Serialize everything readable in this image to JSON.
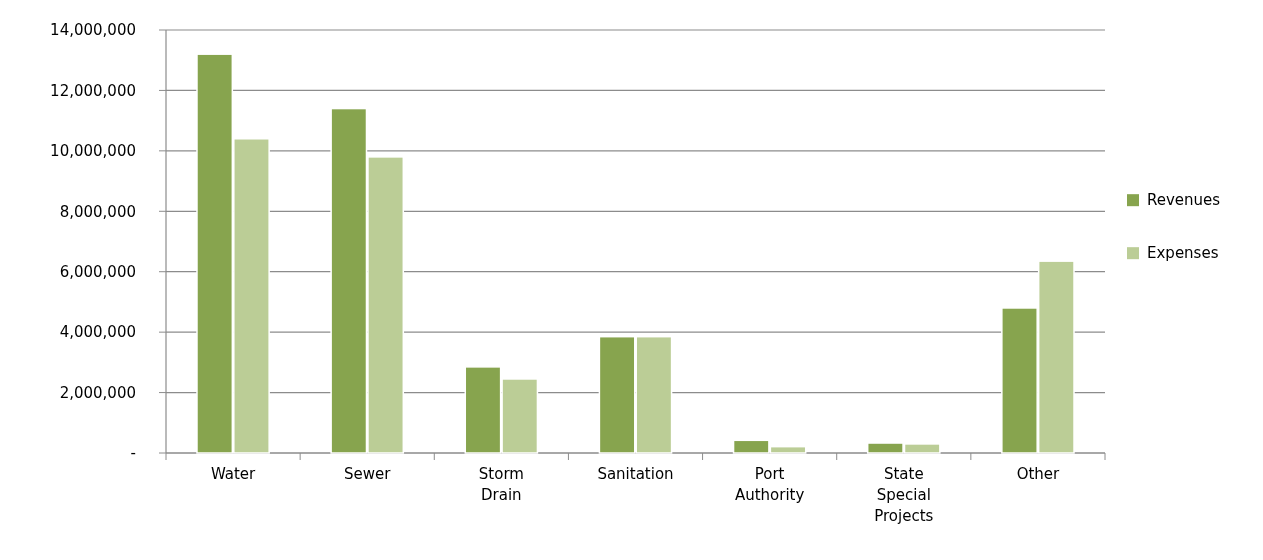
{
  "chart_data": {
    "type": "bar",
    "categories": [
      "Water",
      "Sewer",
      "Storm Drain",
      "Sanitation",
      "Port Authority",
      "State Special Projects",
      "Other"
    ],
    "series": [
      {
        "name": "Revenues",
        "color": "#87a44e",
        "values": [
          13200000,
          11400000,
          2850000,
          3850000,
          420000,
          330000,
          4800000
        ]
      },
      {
        "name": "Expenses",
        "color": "#bbcd96",
        "values": [
          10400000,
          9800000,
          2450000,
          3850000,
          210000,
          300000,
          6350000
        ]
      }
    ],
    "ylim": [
      0,
      14000000
    ],
    "yticks": [
      {
        "value": 0,
        "label": "-"
      },
      {
        "value": 2000000,
        "label": "2,000,000"
      },
      {
        "value": 4000000,
        "label": "4,000,000"
      },
      {
        "value": 6000000,
        "label": "6,000,000"
      },
      {
        "value": 8000000,
        "label": "8,000,000"
      },
      {
        "value": 10000000,
        "label": "10,000,000"
      },
      {
        "value": 12000000,
        "label": "12,000,000"
      },
      {
        "value": 14000000,
        "label": "14,000,000"
      }
    ],
    "grid": "y",
    "legend": "right"
  }
}
